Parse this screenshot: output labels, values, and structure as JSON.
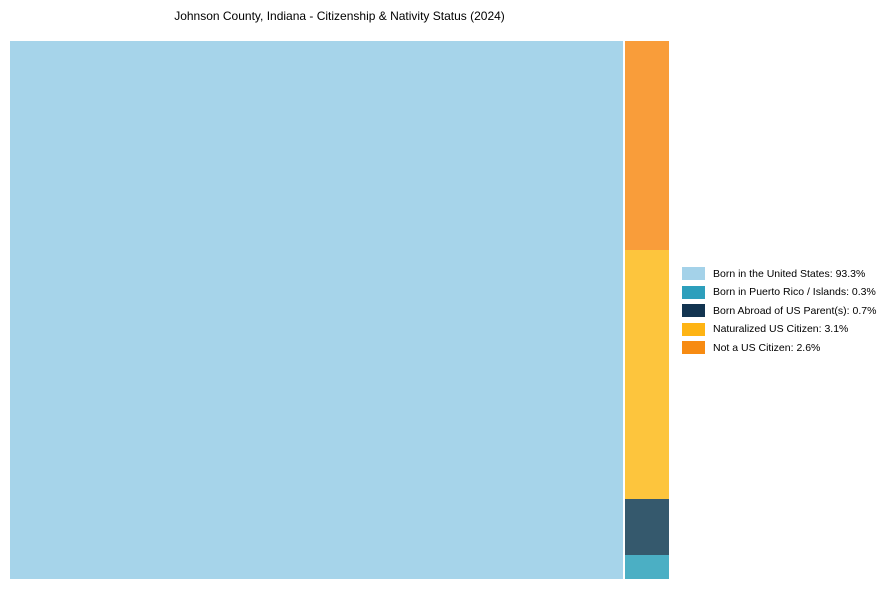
{
  "header": {
    "title": "Johnson County, Indiana - Citizenship & Nativity Status (2024)"
  },
  "chart_data": {
    "type": "treemap",
    "title": "Johnson County, Indiana - Citizenship & Nativity Status (2024)",
    "unit": "percent",
    "legend_position": "right-center",
    "grid": false,
    "categories": [
      {
        "slug": "born-in-the-united-states",
        "label": "Born in the United States",
        "value": 93.3,
        "legend_text": "Born in the United States: 93.3%",
        "tile_color": "#a6d4ea",
        "legend_color": "#a4d2e9"
      },
      {
        "slug": "born-in-puerto-rico-islands",
        "label": "Born in Puerto Rico / Islands",
        "value": 0.3,
        "legend_text": "Born in Puerto Rico / Islands: 0.3%",
        "tile_color": "#4bafc4",
        "legend_color": "#2d9fbc"
      },
      {
        "slug": "born-abroad-of-us-parents",
        "label": "Born Abroad of US Parent(s)",
        "value": 0.7,
        "legend_text": "Born Abroad of US Parent(s): 0.7%",
        "tile_color": "#35596d",
        "legend_color": "#123450"
      },
      {
        "slug": "naturalized-us-citizen",
        "label": "Naturalized US Citizen",
        "value": 3.1,
        "legend_text": "Naturalized US Citizen: 3.1%",
        "tile_color": "#fdc53d",
        "legend_color": "#feb414"
      },
      {
        "slug": "not-a-us-citizen",
        "label": "Not a US Citizen",
        "value": 2.6,
        "legend_text": "Not a US Citizen: 2.6%",
        "tile_color": "#f99d3a",
        "legend_color": "#f78b12"
      }
    ],
    "layout_hints": {
      "main_tile": "Born in the United States",
      "right_column_top_to_bottom": [
        "Not a US Citizen",
        "Naturalized US Citizen",
        "Born Abroad of US Parent(s)",
        "Born in Puerto Rico / Islands"
      ]
    }
  }
}
